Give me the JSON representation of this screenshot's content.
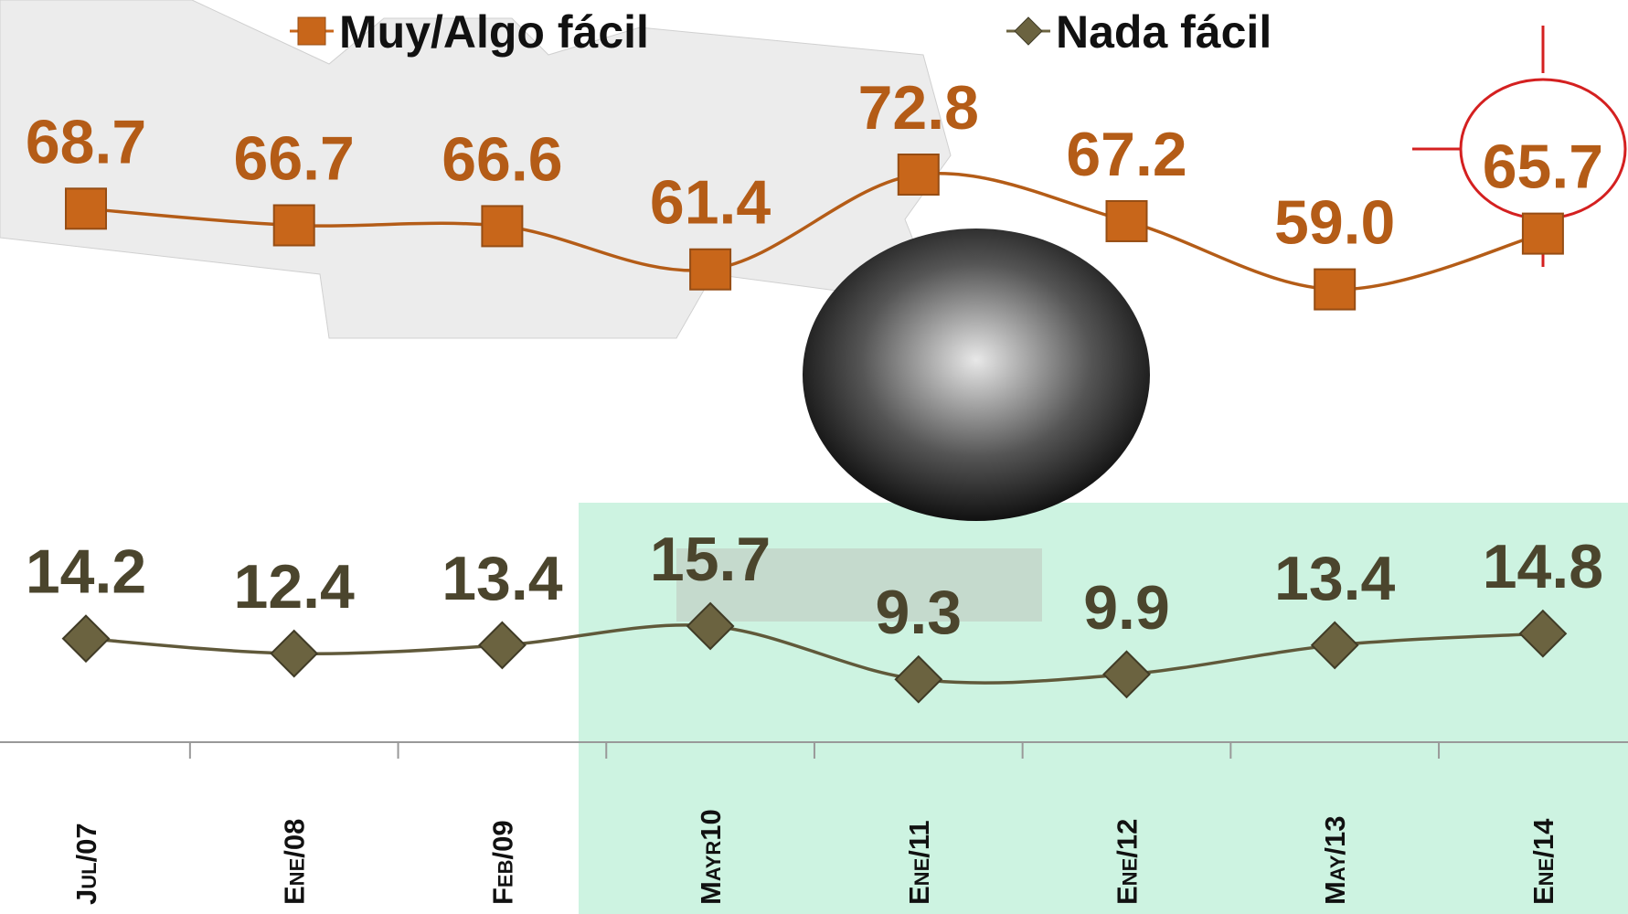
{
  "chart_data": {
    "type": "line",
    "categories": [
      "Jul/07",
      "Ene/08",
      "Feb/09",
      "Mayr10",
      "Ene/11",
      "Ene/12",
      "May/13",
      "Ene/14"
    ],
    "series": [
      {
        "name": "Muy/Algo fácil",
        "color": "#c8661a",
        "values": [
          68.7,
          66.7,
          66.6,
          61.4,
          72.8,
          67.2,
          59.0,
          65.7
        ],
        "value_labels": [
          "68.7",
          "66.7",
          "66.6",
          "61.4",
          "72.8",
          "67.2",
          "59.0",
          "65.7"
        ]
      },
      {
        "name": "Nada fácil",
        "color": "#6b6340",
        "values": [
          14.2,
          12.4,
          13.4,
          15.7,
          9.3,
          9.9,
          13.4,
          14.8
        ]
      }
    ]
  }
}
